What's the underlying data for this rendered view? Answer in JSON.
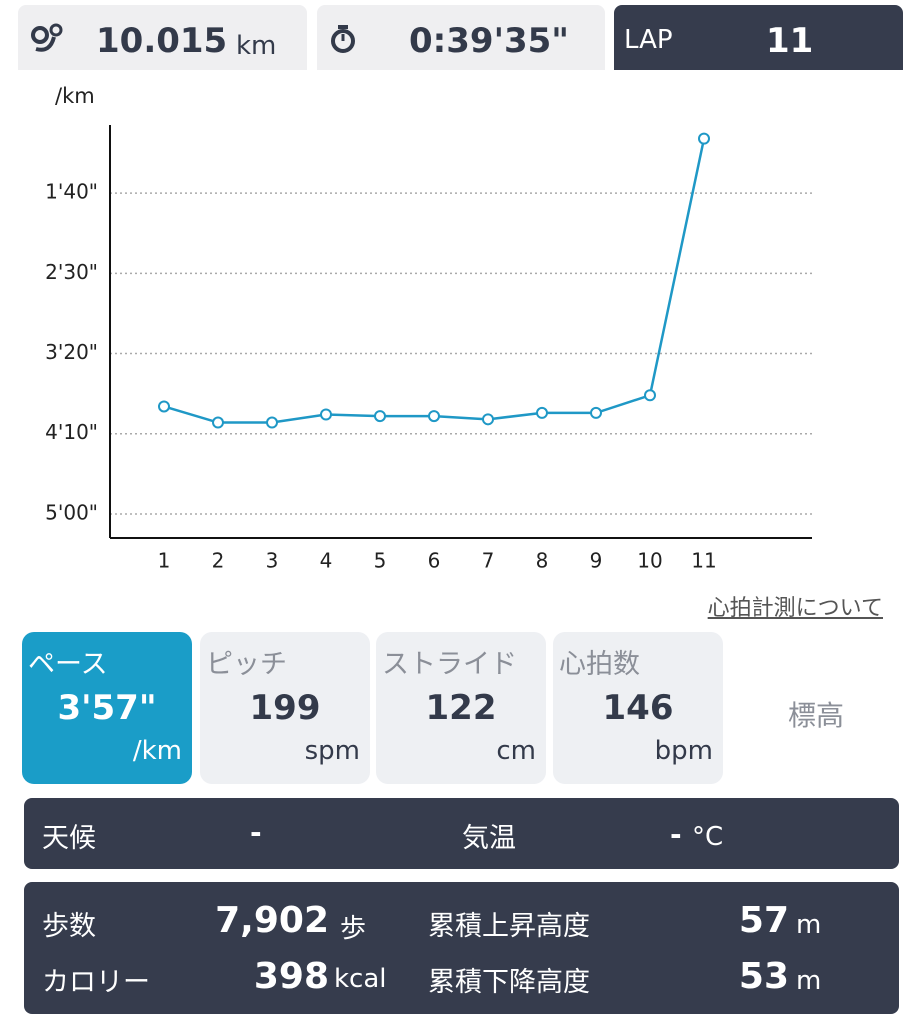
{
  "header": {
    "distance": "10.015",
    "distance_unit": "km",
    "time": "0:39'35\"",
    "lap_label": "LAP",
    "lap": "11"
  },
  "chart_data": {
    "type": "line",
    "y_label": "/km",
    "categories": [
      "1",
      "2",
      "3",
      "4",
      "5",
      "6",
      "7",
      "8",
      "9",
      "10",
      "11"
    ],
    "values": [
      233,
      243,
      243,
      238,
      239,
      239,
      241,
      237,
      237,
      226,
      66
    ],
    "color": "#1f98c6",
    "ylim": [
      315,
      57.5
    ],
    "yticks": [
      {
        "value": 100,
        "label": "1'40\""
      },
      {
        "value": 150,
        "label": "2'30\""
      },
      {
        "value": 200,
        "label": "3'20\""
      },
      {
        "value": 250,
        "label": "4'10\""
      },
      {
        "value": 300,
        "label": "5'00\""
      }
    ],
    "grid": true
  },
  "link": "心拍計測について",
  "tabs": [
    {
      "label": "ペース",
      "value": "3'57\"",
      "unit": "/km"
    },
    {
      "label": "ピッチ",
      "value": "199",
      "unit": "spm"
    },
    {
      "label": "ストライド",
      "value": "122",
      "unit": "cm"
    },
    {
      "label": "心拍数",
      "value": "146",
      "unit": "bpm"
    },
    {
      "label": "標高"
    }
  ],
  "weather": {
    "weather_label": "天候",
    "weather_value": "-",
    "temp_label": "気温",
    "temp_value": "-",
    "temp_unit": "°C"
  },
  "stats": {
    "steps_label": "歩数",
    "steps": "7,902",
    "steps_unit": "歩",
    "calories_label": "カロリー",
    "calories": "398",
    "calories_unit": "kcal",
    "ascent_label": "累積上昇高度",
    "ascent": "57",
    "ascent_unit": "m",
    "descent_label": "累積下降高度",
    "descent": "53",
    "descent_unit": "m"
  }
}
